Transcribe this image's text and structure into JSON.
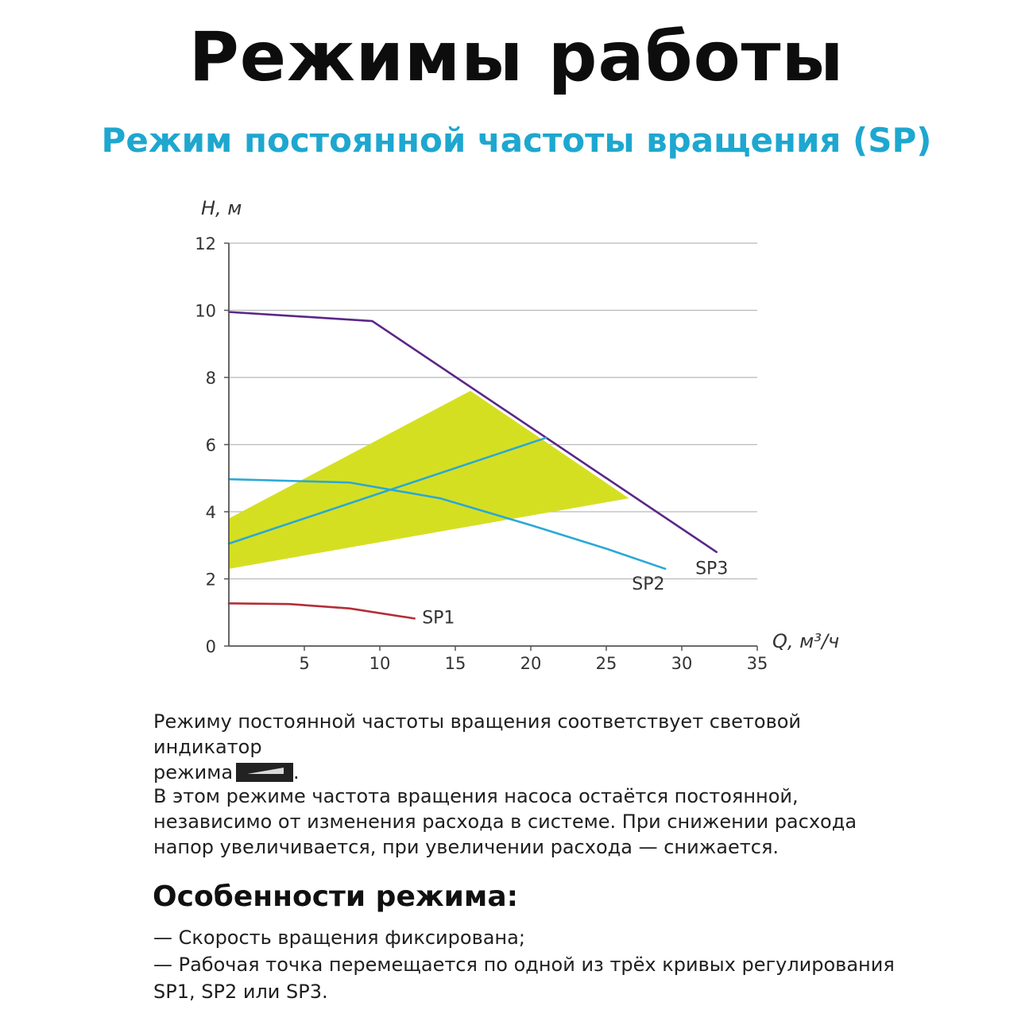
{
  "title": "Режимы работы",
  "subtitle": "Режим постоянной частоты вращения (SP)",
  "accent_color": "#1ea7cf",
  "chart_data": {
    "type": "line",
    "ylabel": "H, м",
    "xlabel": "Q, м³/ч",
    "xlim": [
      0,
      35
    ],
    "ylim": [
      0,
      12
    ],
    "x_ticks": [
      "5",
      "10",
      "15",
      "20",
      "25",
      "30",
      "35"
    ],
    "y_ticks": [
      "0",
      "2",
      "4",
      "6",
      "8",
      "10",
      "12"
    ],
    "grid": "horizontal",
    "zone": {
      "color": "#d5df22",
      "points": [
        [
          0,
          3.8
        ],
        [
          16,
          7.6
        ],
        [
          26.5,
          4.4
        ],
        [
          0,
          2.3
        ]
      ]
    },
    "series": [
      {
        "name": "SP1",
        "color": "#b32e37",
        "points": [
          [
            0,
            1.27
          ],
          [
            4,
            1.25
          ],
          [
            8,
            1.12
          ],
          [
            12.3,
            0.82
          ]
        ]
      },
      {
        "name": "SP2",
        "color": "#2aa8d6",
        "points": [
          [
            0,
            4.97
          ],
          [
            8,
            4.87
          ],
          [
            14,
            4.4
          ],
          [
            20,
            3.6
          ],
          [
            25,
            2.9
          ],
          [
            28.9,
            2.3
          ]
        ]
      },
      {
        "name": "SP3",
        "color": "#5b2687",
        "points": [
          [
            0,
            9.95
          ],
          [
            9.5,
            9.68
          ],
          [
            32.3,
            2.8
          ]
        ]
      },
      {
        "name": "",
        "color": "#2aa8d6",
        "points": [
          [
            0,
            3.05
          ],
          [
            21,
            6.2
          ]
        ]
      }
    ],
    "labels": {
      "sp1": "SP1",
      "sp2": "SP2",
      "sp3": "SP3"
    }
  },
  "text": {
    "indicator_line_before": "Режиму постоянной частоты вращения соответствует световой индикатор",
    "indicator_line_after_prefix": "режима",
    "indicator_line_after_suffix": ".",
    "description": "В этом режиме частота вращения насоса остаётся постоянной, независимо от изменения расхода в системе. При снижении расхода напор увеличивается, при увеличении расхода — снижается.",
    "features_title": "Особенности режима:",
    "features": [
      "— Скорость вращения фиксирована;",
      "— Рабочая точка перемещается по одной из трёх кривых регулирования SP1, SP2 или SP3."
    ]
  }
}
